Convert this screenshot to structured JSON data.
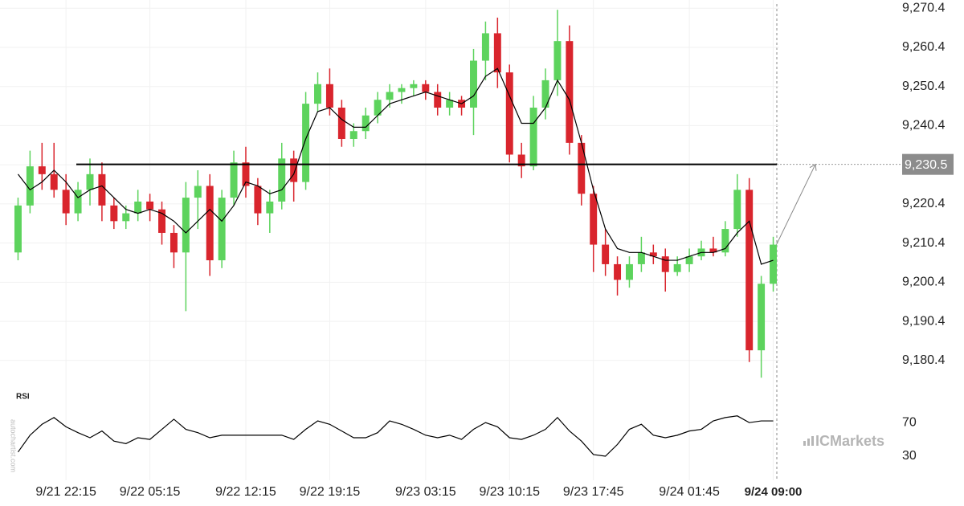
{
  "chart_data": {
    "type": "candlestick",
    "categories": [
      null,
      null,
      null,
      null,
      "9/21 22:15",
      null,
      null,
      null,
      null,
      null,
      null,
      "9/22 05:15",
      null,
      null,
      null,
      null,
      null,
      null,
      null,
      "9/22 12:15",
      null,
      null,
      null,
      null,
      null,
      null,
      "9/22 19:15",
      null,
      null,
      null,
      null,
      null,
      null,
      null,
      "9/23 03:15",
      null,
      null,
      null,
      null,
      null,
      null,
      "9/23 10:15",
      null,
      null,
      null,
      null,
      null,
      null,
      "9/23 17:45",
      null,
      null,
      null,
      null,
      null,
      null,
      null,
      "9/24 01:45",
      null,
      null,
      null,
      null,
      null,
      null,
      "9/24 09:00"
    ],
    "open": [
      9208,
      9220,
      9230,
      9228,
      9224,
      9218,
      9224,
      9228,
      9220,
      9216,
      9218,
      9221,
      9219,
      9213,
      9208,
      9222,
      9225,
      9206,
      9222,
      9231,
      9225,
      9218,
      9221,
      9232,
      9226,
      9246,
      9251,
      9245,
      9237,
      9239,
      9243,
      9247,
      9249,
      9250,
      9251,
      9249,
      9245,
      9247,
      9245,
      9257,
      9264,
      9254,
      9233,
      9230,
      9245,
      9252,
      9262,
      9236,
      9223,
      9210,
      9205,
      9201,
      9205,
      9208,
      9207,
      9203,
      9205,
      9207,
      9209,
      9208,
      9214,
      9224,
      9183,
      9200
    ],
    "high": [
      9222,
      9234,
      9236,
      9236,
      9228,
      9226,
      9232,
      9231,
      9222,
      9220,
      9224,
      9223,
      9221,
      9215,
      9226,
      9229,
      9228,
      9224,
      9234,
      9235,
      9227,
      9224,
      9236,
      9234,
      9249,
      9254,
      9255,
      9247,
      9241,
      9245,
      9249,
      9251,
      9251,
      9252,
      9252,
      9251,
      9249,
      9248,
      9260,
      9267,
      9268,
      9256,
      9236,
      9248,
      9255,
      9270,
      9266,
      9238,
      9225,
      9214,
      9207,
      9207,
      9212,
      9210,
      9209,
      9207,
      9209,
      9211,
      9212,
      9216,
      9228,
      9227,
      9202,
      9212
    ],
    "low": [
      9206,
      9218,
      9224,
      9222,
      9215,
      9216,
      9220,
      9216,
      9214,
      9214,
      9216,
      9216,
      9210,
      9204,
      9193,
      9214,
      9202,
      9204,
      9220,
      9222,
      9215,
      9213,
      9219,
      9221,
      9224,
      9244,
      9243,
      9235,
      9235,
      9237,
      9241,
      9245,
      9246,
      9248,
      9247,
      9243,
      9243,
      9243,
      9238,
      9252,
      9250,
      9231,
      9227,
      9229,
      9242,
      9248,
      9233,
      9220,
      9203,
      9202,
      9197,
      9199,
      9203,
      9205,
      9198,
      9202,
      9203,
      9206,
      9207,
      9207,
      9212,
      9180,
      9176,
      9198
    ],
    "close": [
      9220,
      9230,
      9228,
      9224,
      9218,
      9224,
      9228,
      9220,
      9216,
      9218,
      9221,
      9219,
      9213,
      9208,
      9222,
      9225,
      9206,
      9222,
      9231,
      9225,
      9218,
      9221,
      9232,
      9226,
      9246,
      9251,
      9245,
      9237,
      9239,
      9243,
      9247,
      9249,
      9250,
      9251,
      9249,
      9245,
      9247,
      9245,
      9257,
      9264,
      9254,
      9233,
      9230,
      9245,
      9252,
      9262,
      9236,
      9223,
      9210,
      9205,
      9201,
      9205,
      9208,
      9207,
      9203,
      9205,
      9207,
      9209,
      9208,
      9214,
      9224,
      9183,
      9200,
      9210
    ],
    "up_color": "#5dd35d",
    "down_color": "#d9252d",
    "ylim": [
      9174,
      9272.5
    ],
    "yticks": [
      {
        "value": 9180.4,
        "label": "9,180.4"
      },
      {
        "value": 9190.4,
        "label": "9,190.4"
      },
      {
        "value": 9200.4,
        "label": "9,200.4"
      },
      {
        "value": 9210.4,
        "label": "9,210.4"
      },
      {
        "value": 9220.4,
        "label": "9,220.4"
      },
      {
        "value": 9230.4,
        "label": "9,230.4"
      },
      {
        "value": 9240.4,
        "label": "9,240.4"
      },
      {
        "value": 9250.4,
        "label": "9,250.4"
      },
      {
        "value": 9260.4,
        "label": "9,260.4"
      },
      {
        "value": 9270.4,
        "label": "9,270.4"
      }
    ],
    "grid": true,
    "level": {
      "value": 9230.5,
      "label": "9,230.5",
      "color": "#000000"
    },
    "ma": {
      "color": "#000000",
      "values": [
        9228,
        9224,
        9226,
        9229,
        9226,
        9222,
        9224,
        9225,
        9222,
        9219,
        9218,
        9219,
        9218,
        9216,
        9213,
        9216,
        9219,
        9216,
        9220,
        9226,
        9225,
        9223,
        9224,
        9228,
        9237,
        9244,
        9245,
        9242,
        9240,
        9240,
        9243,
        9246,
        9247,
        9248,
        9249,
        9248,
        9247,
        9246,
        9248,
        9253,
        9255,
        9248,
        9241,
        9241,
        9245,
        9252,
        9247,
        9236,
        9224,
        9214,
        9209,
        9208,
        9208,
        9207,
        9206,
        9206,
        9207,
        9208,
        9208,
        9209,
        9213,
        9216,
        9205,
        9206
      ]
    },
    "rsi": {
      "label": "RSI",
      "color": "#000000",
      "ylim": [
        9,
        95
      ],
      "yticks": [
        30,
        70
      ],
      "values": [
        35,
        55,
        68,
        76,
        65,
        58,
        52,
        60,
        48,
        45,
        52,
        50,
        62,
        74,
        62,
        58,
        52,
        55,
        55,
        55,
        55,
        55,
        55,
        50,
        62,
        72,
        68,
        60,
        52,
        52,
        58,
        72,
        68,
        62,
        55,
        52,
        55,
        50,
        62,
        70,
        65,
        52,
        50,
        55,
        62,
        76,
        60,
        48,
        32,
        30,
        44,
        62,
        68,
        55,
        52,
        55,
        60,
        62,
        72,
        76,
        78,
        70,
        72,
        72
      ]
    },
    "watermark": "ICMarkets",
    "source": "autochartist.com"
  }
}
